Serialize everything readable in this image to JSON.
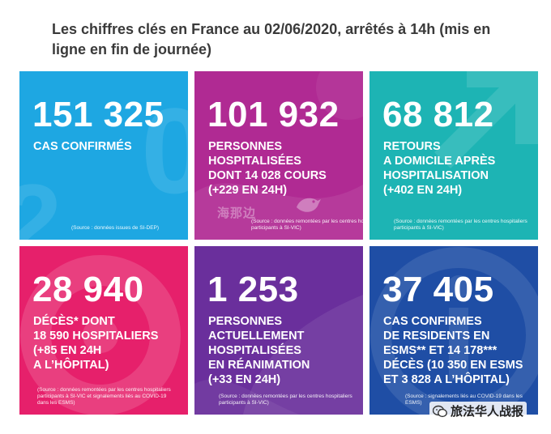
{
  "heading": "Les chiffres clés en France au 02/06/2020, arrêtés à 14h (mis en ligne en fin de journée)",
  "colors": {
    "card1": "#1ea7e2",
    "card2": "#b02a93",
    "card3": "#1db4b4",
    "card4": "#e6206b",
    "card5": "#6a2f9c",
    "card6": "#1f4ea5"
  },
  "cards": [
    {
      "value": "151 325",
      "lines": [
        "CAS CONFIRMÉS"
      ],
      "source": "(Source : données issues de SI-DEP)"
    },
    {
      "value": "101 932",
      "lines": [
        "PERSONNES",
        "HOSPITALISÉES",
        "DONT 14 028 COURS",
        "(+229 EN 24H)"
      ],
      "source": "(Source : données remontées par les centres hospitaliers participants à SI-VIC)"
    },
    {
      "value": "68 812",
      "lines": [
        "RETOURS",
        "A DOMICILE APRÈS",
        "HOSPITALISATION",
        "(+402 EN 24H)"
      ],
      "source": "(Source : données remontées par les centres hospitaliers participants à SI-VIC)"
    },
    {
      "value": "28 940",
      "lines": [
        "DÉCÈS* DONT",
        "18 590 HOSPITALIERS",
        "(+85 EN 24H",
        "A L’HÔPITAL)"
      ],
      "source": "(Source : données remontées par les centres hospitaliers participants à SI-VIC et signalements liés au COVID-19 dans les ESMS)"
    },
    {
      "value": "1 253",
      "lines": [
        "PERSONNES",
        "ACTUELLEMENT",
        "HOSPITALISÉES",
        "EN RÉANIMATION",
        "(+33 EN 24H)"
      ],
      "source": "(Source : données remontées par les centres hospitaliers participants à SI-VIC)"
    },
    {
      "value": "37 405",
      "lines": [
        "CAS CONFIRMES",
        "DE RESIDENTS EN",
        "ESMS** ET 14 178***",
        "DÉCÈS (10 350 EN ESMS",
        "ET 3 828 A L’HÔPITAL)"
      ],
      "source": "(Source : signalements liés au COVID-19 dans les ESMS)"
    }
  ],
  "watermarks": {
    "left": "海那边",
    "right": "旅法华人战报",
    "icons": [
      "bird-logo-icon",
      "wechat-icon"
    ]
  }
}
